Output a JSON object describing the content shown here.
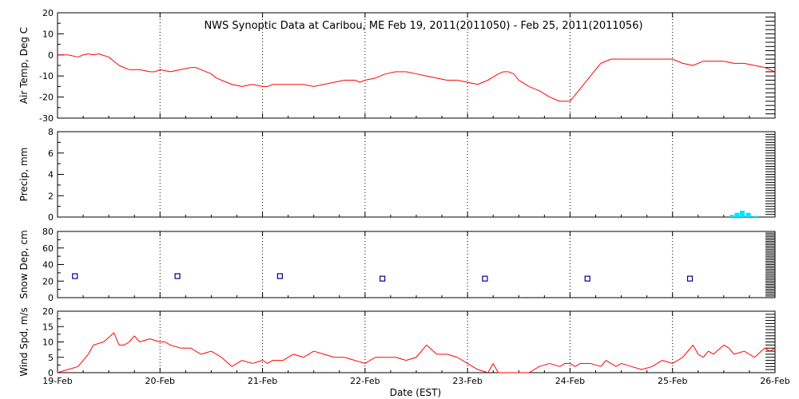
{
  "chart_data": [
    {
      "type": "line",
      "title": "NWS Synoptic Data at Caribou, ME   Feb 19, 2011(2011050) - Feb 25, 2011(2011056)",
      "ylabel": "Air Temp, Deg C",
      "ylim": [
        -30,
        20
      ],
      "yticks": [
        -30,
        -20,
        -10,
        0,
        10,
        20
      ],
      "grid": true,
      "color": "#ff0000",
      "x": [
        0,
        0.1,
        0.2,
        0.25,
        0.3,
        0.35,
        0.4,
        0.5,
        0.55,
        0.6,
        0.7,
        0.75,
        0.8,
        0.9,
        0.95,
        1.0,
        1.1,
        1.2,
        1.3,
        1.35,
        1.4,
        1.5,
        1.55,
        1.6,
        1.7,
        1.8,
        1.9,
        2.0,
        2.05,
        2.1,
        2.2,
        2.3,
        2.4,
        2.5,
        2.6,
        2.7,
        2.8,
        2.9,
        2.95,
        3.0,
        3.1,
        3.2,
        3.3,
        3.4,
        3.5,
        3.6,
        3.7,
        3.8,
        3.9,
        4.0,
        4.1,
        4.2,
        4.3,
        4.35,
        4.4,
        4.45,
        4.5,
        4.6,
        4.7,
        4.8,
        4.9,
        5.0,
        5.1,
        5.2,
        5.3,
        5.4,
        5.5,
        5.6,
        5.7,
        5.8,
        5.9,
        6.0,
        6.1,
        6.2,
        6.3,
        6.4,
        6.5,
        6.6,
        6.7,
        6.8,
        6.9,
        7.0
      ],
      "y": [
        0,
        0,
        -1,
        0,
        0.5,
        0,
        0.5,
        -1,
        -3,
        -5,
        -7,
        -7,
        -7,
        -8,
        -8,
        -7,
        -8,
        -7,
        -6,
        -6,
        -7,
        -9,
        -11,
        -12,
        -14,
        -15,
        -14,
        -15,
        -15,
        -14,
        -14,
        -14,
        -14,
        -15,
        -14,
        -13,
        -12,
        -12,
        -13,
        -12,
        -11,
        -9,
        -8,
        -8,
        -9,
        -10,
        -11,
        -12,
        -12,
        -13,
        -14,
        -12,
        -9,
        -8,
        -8,
        -9,
        -12,
        -15,
        -17,
        -20,
        -22,
        -22,
        -16,
        -10,
        -4,
        -2,
        -2,
        -2,
        -2,
        -2,
        -2,
        -2,
        -4,
        -5,
        -3,
        -3,
        -3,
        -4,
        -4,
        -5,
        -6,
        -8
      ]
    },
    {
      "type": "bar",
      "ylabel": "Precip, mm",
      "ylim": [
        0,
        8
      ],
      "yticks": [
        0,
        2,
        4,
        6,
        8
      ],
      "grid": true,
      "color": "#00e5ff",
      "x": [
        6.58,
        6.63,
        6.68,
        6.74,
        6.81
      ],
      "values": [
        0.2,
        0.4,
        0.6,
        0.4,
        0.1
      ]
    },
    {
      "type": "scatter",
      "ylabel": "Snow Dep, cm",
      "ylim": [
        0,
        80
      ],
      "yticks": [
        0,
        20,
        40,
        60,
        80
      ],
      "grid": true,
      "color": "#00008b",
      "x": [
        0.17,
        1.17,
        2.17,
        3.17,
        4.17,
        5.17,
        6.17
      ],
      "y": [
        26,
        26,
        26,
        23,
        23,
        23,
        23
      ]
    },
    {
      "type": "line",
      "ylabel": "Wind Spd, m/s",
      "xlabel": "Date (EST)",
      "ylim": [
        0,
        20
      ],
      "yticks": [
        0,
        5,
        10,
        15,
        20
      ],
      "grid": true,
      "color": "#ff0000",
      "categories": [
        "19-Feb",
        "20-Feb",
        "21-Feb",
        "22-Feb",
        "23-Feb",
        "24-Feb",
        "25-Feb",
        "26-Feb"
      ],
      "x": [
        0,
        0.1,
        0.2,
        0.3,
        0.35,
        0.45,
        0.55,
        0.6,
        0.65,
        0.7,
        0.75,
        0.8,
        0.9,
        1.0,
        1.05,
        1.1,
        1.2,
        1.3,
        1.35,
        1.4,
        1.5,
        1.6,
        1.7,
        1.8,
        1.9,
        2.0,
        2.05,
        2.1,
        2.2,
        2.3,
        2.4,
        2.5,
        2.6,
        2.7,
        2.8,
        2.9,
        3.0,
        3.1,
        3.2,
        3.3,
        3.4,
        3.5,
        3.6,
        3.7,
        3.8,
        3.9,
        4.0,
        4.1,
        4.2,
        4.25,
        4.3,
        4.4,
        4.5,
        4.6,
        4.7,
        4.8,
        4.9,
        4.95,
        5.0,
        5.05,
        5.1,
        5.2,
        5.3,
        5.35,
        5.45,
        5.5,
        5.6,
        5.7,
        5.8,
        5.9,
        6.0,
        6.1,
        6.2,
        6.25,
        6.3,
        6.35,
        6.4,
        6.5,
        6.55,
        6.6,
        6.7,
        6.8,
        6.9,
        6.95,
        7.0
      ],
      "y": [
        0,
        1,
        2,
        6,
        9,
        10,
        13,
        9,
        9,
        10,
        12,
        10,
        11,
        10,
        10,
        9,
        8,
        8,
        7,
        6,
        7,
        5,
        2,
        4,
        3,
        4,
        3,
        4,
        4,
        6,
        5,
        7,
        6,
        5,
        5,
        4,
        3,
        5,
        5,
        5,
        4,
        5,
        9,
        6,
        6,
        5,
        3,
        1,
        0,
        3,
        0,
        0,
        0,
        0,
        2,
        3,
        2,
        3,
        3,
        2,
        3,
        3,
        2,
        4,
        2,
        3,
        2,
        1,
        2,
        4,
        3,
        5,
        9,
        6,
        5,
        7,
        6,
        9,
        8,
        6,
        7,
        5,
        8,
        7,
        8
      ]
    }
  ]
}
